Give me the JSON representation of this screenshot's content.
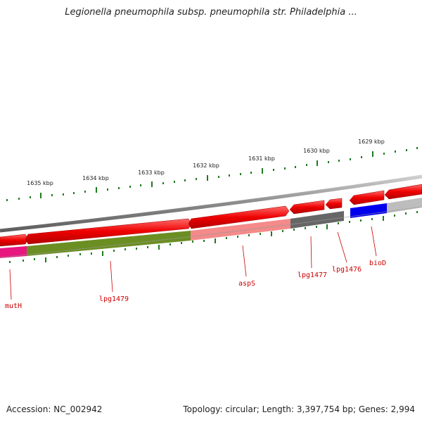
{
  "header": {
    "title": "Legionella pneumophila subsp. pneumophila str. Philadelphia ..."
  },
  "footer": {
    "accession": "Accession: NC_002942",
    "summary": "Topology: circular; Length: 3,397,754 bp; Genes: 2,994"
  },
  "scale": {
    "kbp_labels": [
      "1635 kbp",
      "1634 kbp",
      "1633 kbp",
      "1632 kbp",
      "1631 kbp",
      "1630 kbp",
      "1629 kbp"
    ]
  },
  "genes": {
    "labels": [
      "mutH",
      "lpg1479",
      "aspS",
      "lpg1477",
      "lpg1476",
      "bioD"
    ]
  },
  "colors": {
    "forward_arrow": "#ee0000",
    "lpg1479": "#6b8e23",
    "aspS": "#f48a8a",
    "lpg1477": "#666666",
    "bioD": "#0000ee",
    "mutH": "#e8167f",
    "tick": "#1f7a1f",
    "backbone": "#888888"
  }
}
